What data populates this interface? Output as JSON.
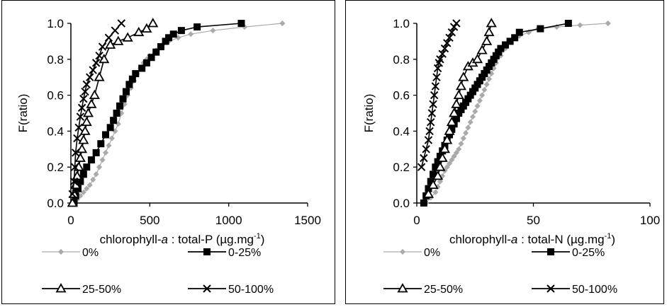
{
  "chart_data": [
    {
      "type": "line",
      "xlabel_prefix": "chlorophyll-",
      "xlabel_italic": "a",
      "xlabel_mid": " : total-P (µg.mg",
      "xlabel_sup": "-1",
      "xlabel_suffix": ")",
      "ylabel": "F(ratio)",
      "xlim": [
        0,
        1500
      ],
      "ylim": [
        0,
        1.0
      ],
      "xticks": [
        0,
        500,
        1000,
        1500
      ],
      "yticks": [
        "0.0",
        "0.2",
        "0.4",
        "0.6",
        "0.8",
        "1.0"
      ],
      "series": [
        {
          "name": "0%",
          "marker": "diamond",
          "color": "#aaaaaa",
          "x": [
            20,
            40,
            60,
            80,
            100,
            120,
            140,
            160,
            180,
            200,
            220,
            240,
            260,
            280,
            300,
            320,
            340,
            360,
            380,
            400,
            420,
            440,
            460,
            480,
            500,
            540,
            580,
            620,
            680,
            760,
            900,
            1100,
            1340
          ],
          "y": [
            0.0,
            0.02,
            0.04,
            0.06,
            0.08,
            0.1,
            0.13,
            0.16,
            0.2,
            0.24,
            0.28,
            0.32,
            0.36,
            0.4,
            0.44,
            0.5,
            0.55,
            0.6,
            0.64,
            0.68,
            0.72,
            0.75,
            0.78,
            0.8,
            0.82,
            0.85,
            0.88,
            0.9,
            0.92,
            0.94,
            0.96,
            0.98,
            1.0
          ]
        },
        {
          "name": "0-25%",
          "marker": "square",
          "color": "#000000",
          "x": [
            20,
            30,
            45,
            60,
            80,
            100,
            130,
            160,
            190,
            220,
            250,
            270,
            290,
            310,
            330,
            350,
            370,
            390,
            410,
            450,
            480,
            510,
            540,
            570,
            600,
            620,
            650,
            700,
            800,
            1080
          ],
          "y": [
            0.0,
            0.04,
            0.08,
            0.12,
            0.16,
            0.2,
            0.24,
            0.28,
            0.33,
            0.38,
            0.42,
            0.46,
            0.5,
            0.54,
            0.58,
            0.62,
            0.66,
            0.69,
            0.72,
            0.75,
            0.78,
            0.81,
            0.84,
            0.87,
            0.9,
            0.92,
            0.94,
            0.96,
            0.98,
            1.0
          ]
        },
        {
          "name": "25-50%",
          "marker": "triangle",
          "color": "#000000",
          "x": [
            10,
            20,
            30,
            40,
            50,
            60,
            70,
            80,
            90,
            100,
            110,
            130,
            150,
            180,
            210,
            250,
            300,
            360,
            430,
            480,
            520
          ],
          "y": [
            0.0,
            0.05,
            0.1,
            0.15,
            0.2,
            0.25,
            0.3,
            0.35,
            0.4,
            0.45,
            0.5,
            0.55,
            0.6,
            0.7,
            0.8,
            0.88,
            0.9,
            0.92,
            0.95,
            0.97,
            1.0
          ]
        },
        {
          "name": "50-100%",
          "marker": "x",
          "color": "#000000",
          "x": [
            10,
            20,
            25,
            30,
            40,
            50,
            60,
            70,
            80,
            90,
            100,
            120,
            140,
            160,
            180,
            200,
            240,
            280,
            320
          ],
          "y": [
            0.05,
            0.12,
            0.2,
            0.28,
            0.36,
            0.42,
            0.48,
            0.53,
            0.58,
            0.62,
            0.66,
            0.7,
            0.74,
            0.78,
            0.82,
            0.87,
            0.92,
            0.96,
            1.0
          ]
        }
      ]
    },
    {
      "type": "line",
      "xlabel_prefix": "chlorophyll-",
      "xlabel_italic": "a",
      "xlabel_mid": " : total-N (µg.mg",
      "xlabel_sup": "-1",
      "xlabel_suffix": ")",
      "ylabel": "F(ratio)",
      "xlim": [
        0,
        100
      ],
      "ylim": [
        0,
        1.0
      ],
      "xticks": [
        0,
        50,
        100
      ],
      "yticks": [
        "0.0",
        "0.2",
        "0.4",
        "0.6",
        "0.8",
        "1.0"
      ],
      "series": [
        {
          "name": "0%",
          "marker": "diamond",
          "color": "#aaaaaa",
          "x": [
            4,
            6,
            8,
            9,
            10,
            11,
            12,
            13,
            14,
            15,
            16,
            17,
            18,
            19,
            20,
            21,
            22,
            23,
            24,
            25,
            26,
            27,
            28,
            29,
            30,
            31,
            32,
            33,
            34,
            36,
            38,
            40,
            44,
            48,
            52,
            60,
            70,
            82
          ],
          "y": [
            0.0,
            0.03,
            0.06,
            0.09,
            0.12,
            0.15,
            0.18,
            0.2,
            0.22,
            0.24,
            0.26,
            0.28,
            0.3,
            0.33,
            0.36,
            0.39,
            0.42,
            0.45,
            0.48,
            0.51,
            0.54,
            0.57,
            0.6,
            0.63,
            0.66,
            0.69,
            0.72,
            0.75,
            0.78,
            0.82,
            0.86,
            0.9,
            0.93,
            0.95,
            0.97,
            0.98,
            0.99,
            1.0
          ]
        },
        {
          "name": "0-25%",
          "marker": "square",
          "color": "#000000",
          "x": [
            3,
            4,
            5,
            6,
            7,
            8,
            9,
            10,
            11,
            12,
            13,
            14,
            15,
            16,
            17,
            18,
            19,
            20,
            21,
            22,
            23,
            24,
            25,
            26,
            27,
            28,
            29,
            30,
            31,
            32,
            33,
            34,
            35,
            36,
            38,
            40,
            42,
            44,
            53,
            65
          ],
          "y": [
            0.0,
            0.04,
            0.08,
            0.12,
            0.16,
            0.2,
            0.23,
            0.26,
            0.29,
            0.32,
            0.35,
            0.38,
            0.41,
            0.44,
            0.47,
            0.5,
            0.52,
            0.54,
            0.56,
            0.58,
            0.6,
            0.62,
            0.64,
            0.66,
            0.68,
            0.7,
            0.72,
            0.74,
            0.76,
            0.78,
            0.8,
            0.82,
            0.84,
            0.86,
            0.88,
            0.9,
            0.92,
            0.95,
            0.97,
            1.0
          ]
        },
        {
          "name": "25-50%",
          "marker": "triangle",
          "color": "#000000",
          "x": [
            5,
            7,
            9,
            10,
            11,
            12,
            13,
            14,
            15,
            16,
            17,
            18,
            19,
            20,
            22,
            24,
            26,
            28,
            30,
            31,
            32
          ],
          "y": [
            0.05,
            0.1,
            0.15,
            0.2,
            0.25,
            0.3,
            0.35,
            0.4,
            0.45,
            0.5,
            0.55,
            0.6,
            0.65,
            0.7,
            0.76,
            0.78,
            0.8,
            0.85,
            0.9,
            0.95,
            1.0
          ]
        },
        {
          "name": "50-100%",
          "marker": "x",
          "color": "#000000",
          "x": [
            2,
            3,
            4,
            5,
            5.5,
            6,
            6.5,
            7,
            7.5,
            8,
            8.5,
            9,
            9.5,
            10,
            11,
            12,
            13,
            14,
            15,
            16,
            17
          ],
          "y": [
            0.2,
            0.25,
            0.3,
            0.35,
            0.4,
            0.45,
            0.5,
            0.55,
            0.6,
            0.65,
            0.7,
            0.75,
            0.78,
            0.8,
            0.83,
            0.86,
            0.89,
            0.92,
            0.95,
            0.98,
            1.0
          ]
        }
      ]
    }
  ]
}
